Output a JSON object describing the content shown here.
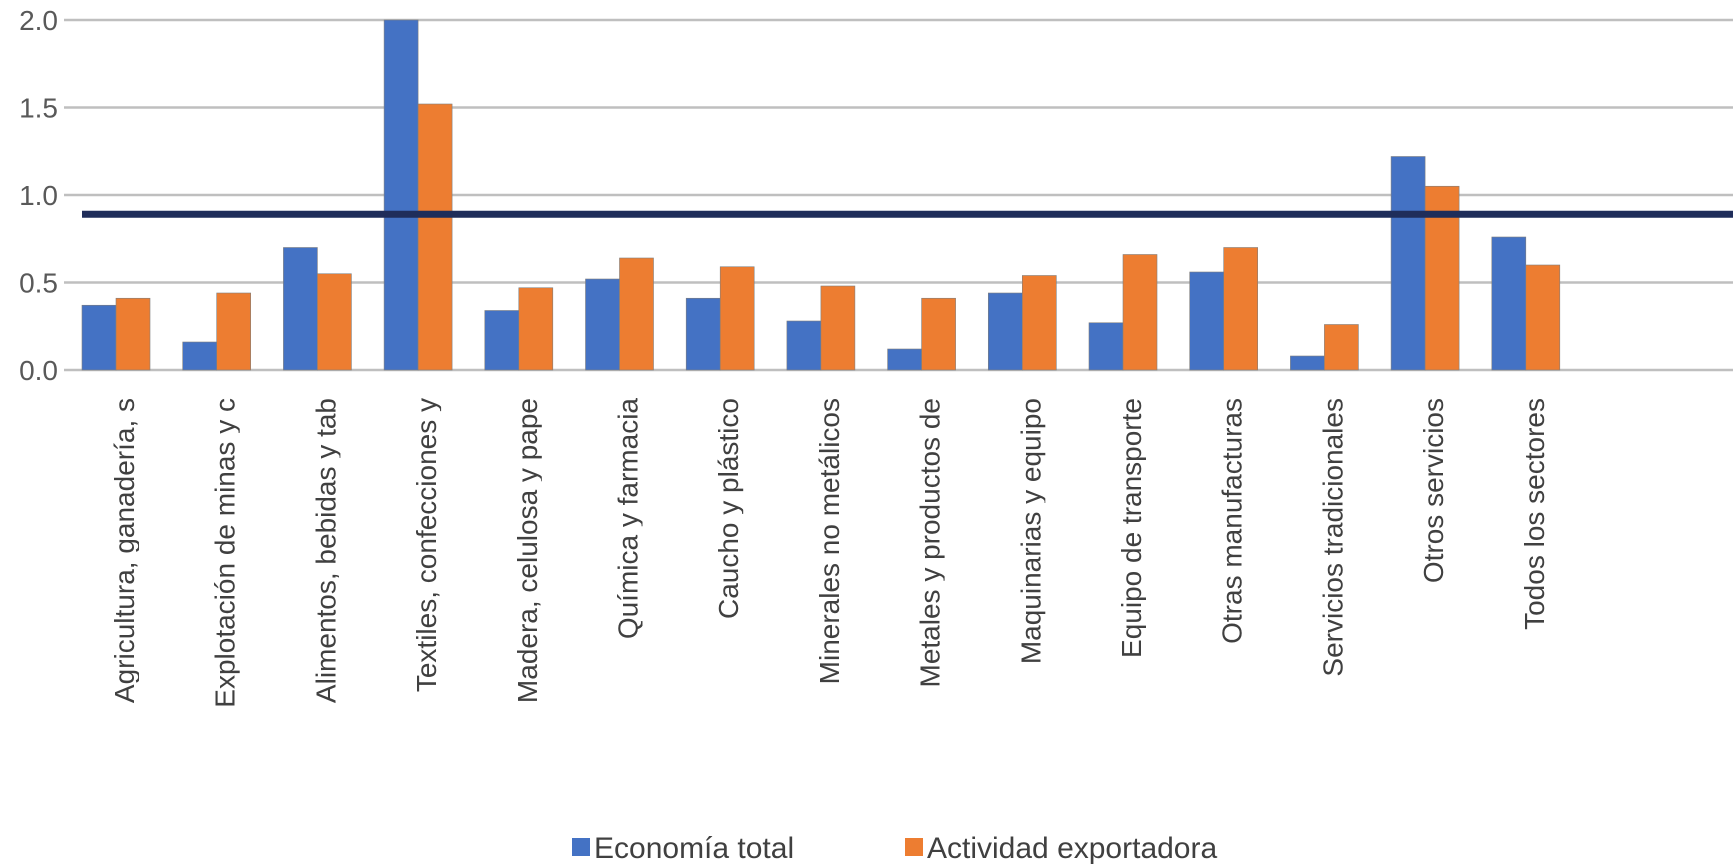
{
  "chart_data": {
    "type": "bar",
    "categories": [
      "Agricultura, ganadería, s",
      "Explotación de minas y c",
      "Alimentos, bebidas y tab",
      "Textiles, confecciones y",
      "Madera, celulosa y pape",
      "Química y farmacia",
      "Caucho y plástico",
      "Minerales no metálicos",
      "Metales y productos de",
      "Maquinarias y equipo",
      "Equipo de transporte",
      "Otras manufacturas",
      "Servicios tradicionales",
      "Otros servicios",
      "Todos los sectores"
    ],
    "series": [
      {
        "name": "Economía total",
        "color": "#4472C4",
        "values": [
          0.37,
          0.16,
          0.7,
          2.0,
          0.34,
          0.52,
          0.41,
          0.28,
          0.12,
          0.44,
          0.27,
          0.56,
          0.08,
          1.22,
          0.76
        ]
      },
      {
        "name": "Actividad exportadora",
        "color": "#ED7D31",
        "values": [
          0.41,
          0.44,
          0.55,
          1.52,
          0.47,
          0.64,
          0.59,
          0.48,
          0.41,
          0.54,
          0.66,
          0.7,
          0.26,
          1.05,
          0.6
        ]
      }
    ],
    "reference_line": {
      "value": 0.89,
      "color": "#1F2D5A"
    },
    "yticks": [
      "0.0",
      "0.5",
      "1.0",
      "1.5",
      "2.0"
    ],
    "ylim": [
      0,
      2.0
    ],
    "grid": true,
    "legend_position": "bottom",
    "title": "",
    "xlabel": "",
    "ylabel": ""
  }
}
